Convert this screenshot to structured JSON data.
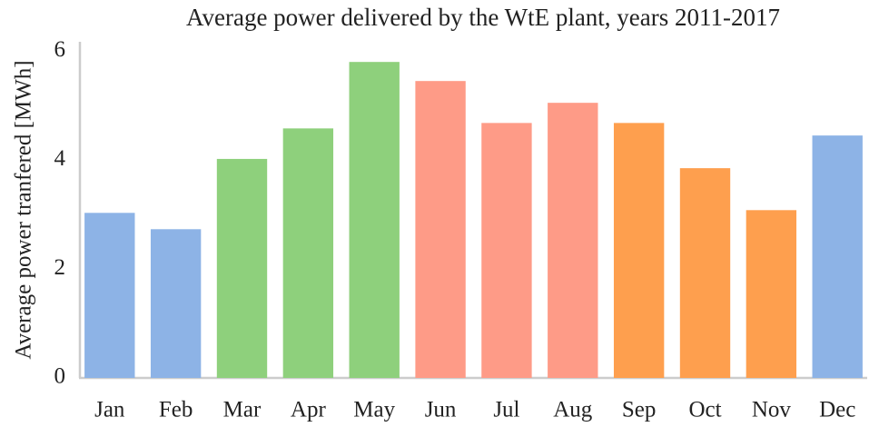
{
  "chart_data": {
    "type": "bar",
    "title": "Average power delivered by the WtE plant, years 2011-2017",
    "y_label": "Average power tranfered [MWh]",
    "categories": [
      "Jan",
      "Feb",
      "Mar",
      "Apr",
      "May",
      "Jun",
      "Jul",
      "Aug",
      "Sep",
      "Oct",
      "Nov",
      "Dec"
    ],
    "values": [
      3.03,
      2.73,
      4.02,
      4.58,
      5.8,
      5.45,
      4.68,
      5.05,
      4.68,
      3.85,
      3.08,
      4.45
    ],
    "colors": [
      "#8db3e6",
      "#8db3e6",
      "#8ed07c",
      "#8ed07c",
      "#8ed07c",
      "#fe9b87",
      "#fe9b87",
      "#fe9b87",
      "#fe9f4e",
      "#fe9f4e",
      "#fe9f4e",
      "#8db3e6"
    ],
    "ylim": [
      0,
      6.17
    ],
    "yticks": [
      0,
      2,
      4,
      6
    ],
    "grid": false
  }
}
